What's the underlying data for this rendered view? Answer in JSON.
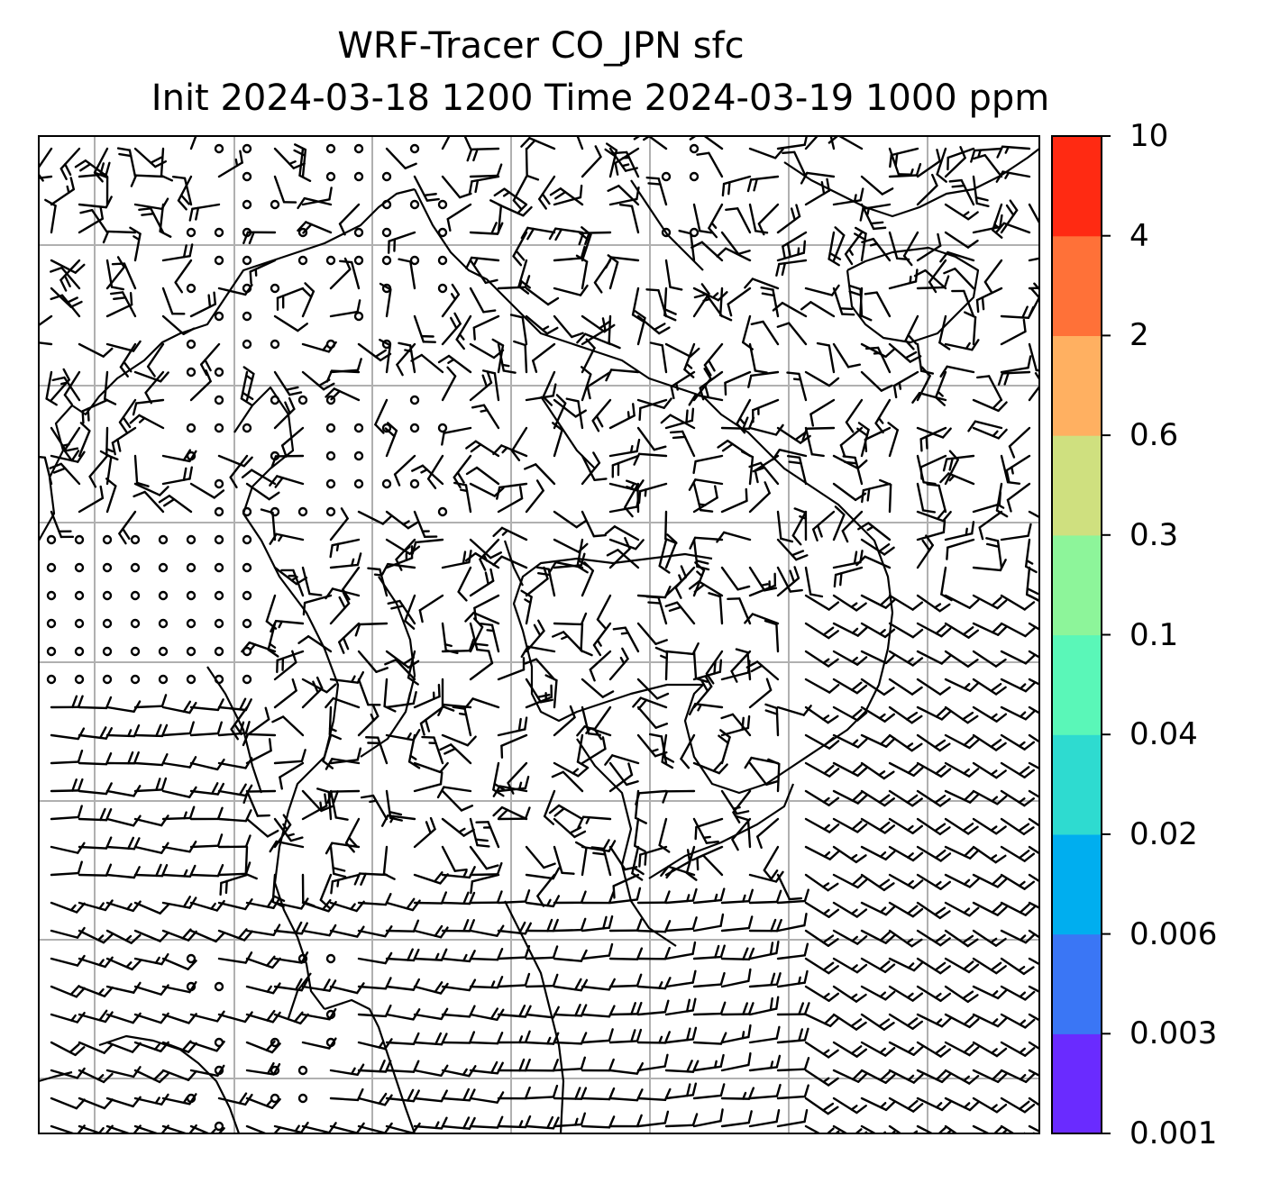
{
  "title": {
    "line1": "WRF-Tracer CO_JPN sfc",
    "line2": "Init 2024-03-18 1200 Time 2024-03-19 1000 ppm"
  },
  "colorbar": {
    "ticks": [
      "0.001",
      "0.003",
      "0.006",
      "0.02",
      "0.04",
      "0.1",
      "0.3",
      "0.6",
      "2",
      "4",
      "10"
    ],
    "colors": [
      "#6a2bff",
      "#3a76f5",
      "#00aeef",
      "#2edbd0",
      "#5af7b8",
      "#8df59a",
      "#cfe07f",
      "#ffb061",
      "#ff7138",
      "#ff2a12"
    ]
  },
  "map": {
    "gridline_color": "#b0b0b0",
    "wind_barb_color": "#000000",
    "coastline_color": "#000000"
  }
}
